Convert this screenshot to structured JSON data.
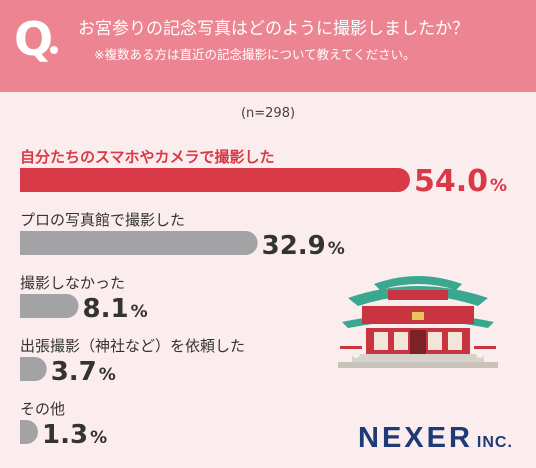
{
  "header": {
    "q_mark": "Q",
    "question": "お宮参りの記念写真はどのように撮影しましたか？",
    "note": "※複数ある方は直近の記念撮影について教えてください。"
  },
  "sample": "(n=298)",
  "chart_data": {
    "type": "bar",
    "orientation": "horizontal",
    "title": "お宮参りの記念写真はどのように撮影しましたか？",
    "categories": [
      "自分たちのスマホやカメラで撮影した",
      "プロの写真館で撮影した",
      "撮影しなかった",
      "出張撮影（神社など）を依頼した",
      "その他"
    ],
    "values": [
      54.0,
      32.9,
      8.1,
      3.7,
      1.3
    ],
    "value_labels": [
      "54.0",
      "32.9",
      "8.1",
      "3.7",
      "1.3"
    ],
    "unit": "%",
    "n": 298,
    "xlim": [
      0,
      54.0
    ],
    "grid": false,
    "legend": "none",
    "colors": {
      "highlight": "#d83a48",
      "default": "#a3a3a5",
      "highlight_label": "#d83a48",
      "default_label": "#333333"
    }
  },
  "logo": {
    "name": "NEXER",
    "suffix": "INC."
  },
  "colors": {
    "header_bg": "#ec8591",
    "page_bg": "#fbeced",
    "logo": "#1e3b78"
  }
}
